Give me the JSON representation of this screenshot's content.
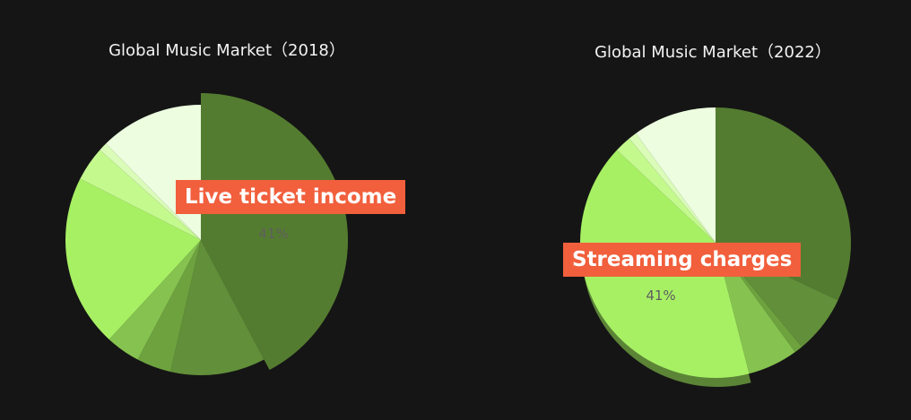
{
  "chart_data": [
    {
      "type": "pie",
      "title": "Global Music Market（2018）",
      "slices": [
        {
          "value": 41,
          "color": "#547c30"
        },
        {
          "value": 11,
          "color": "#628f3a"
        },
        {
          "value": 4,
          "color": "#6da23f"
        },
        {
          "value": 4,
          "color": "#86c24f"
        },
        {
          "value": 20,
          "color": "#a7f064"
        },
        {
          "value": 4,
          "color": "#c4f98e"
        },
        {
          "value": 1,
          "color": "#dafcb8"
        },
        {
          "value": 12,
          "color": "#ecfde0"
        }
      ],
      "highlight_index": 0,
      "callout": "Live ticket income",
      "highlight_value_label": "41%"
    },
    {
      "type": "pie",
      "title": "Global Music Market（2022）",
      "slices": [
        {
          "value": 32,
          "color": "#547c30"
        },
        {
          "value": 7,
          "color": "#628f3a"
        },
        {
          "value": 1,
          "color": "#6da23f"
        },
        {
          "value": 6,
          "color": "#86c24f"
        },
        {
          "value": 41,
          "color": "#a7f064"
        },
        {
          "value": 2,
          "color": "#c4f98e"
        },
        {
          "value": 1,
          "color": "#dafcb8"
        },
        {
          "value": 10,
          "color": "#ecfde0"
        }
      ],
      "highlight_index": 4,
      "callout": "Streaming charges",
      "highlight_value_label": "41%"
    }
  ],
  "colors": {
    "background": "#151515",
    "callout": "#f15f3c",
    "title": "#f2f2f2"
  }
}
